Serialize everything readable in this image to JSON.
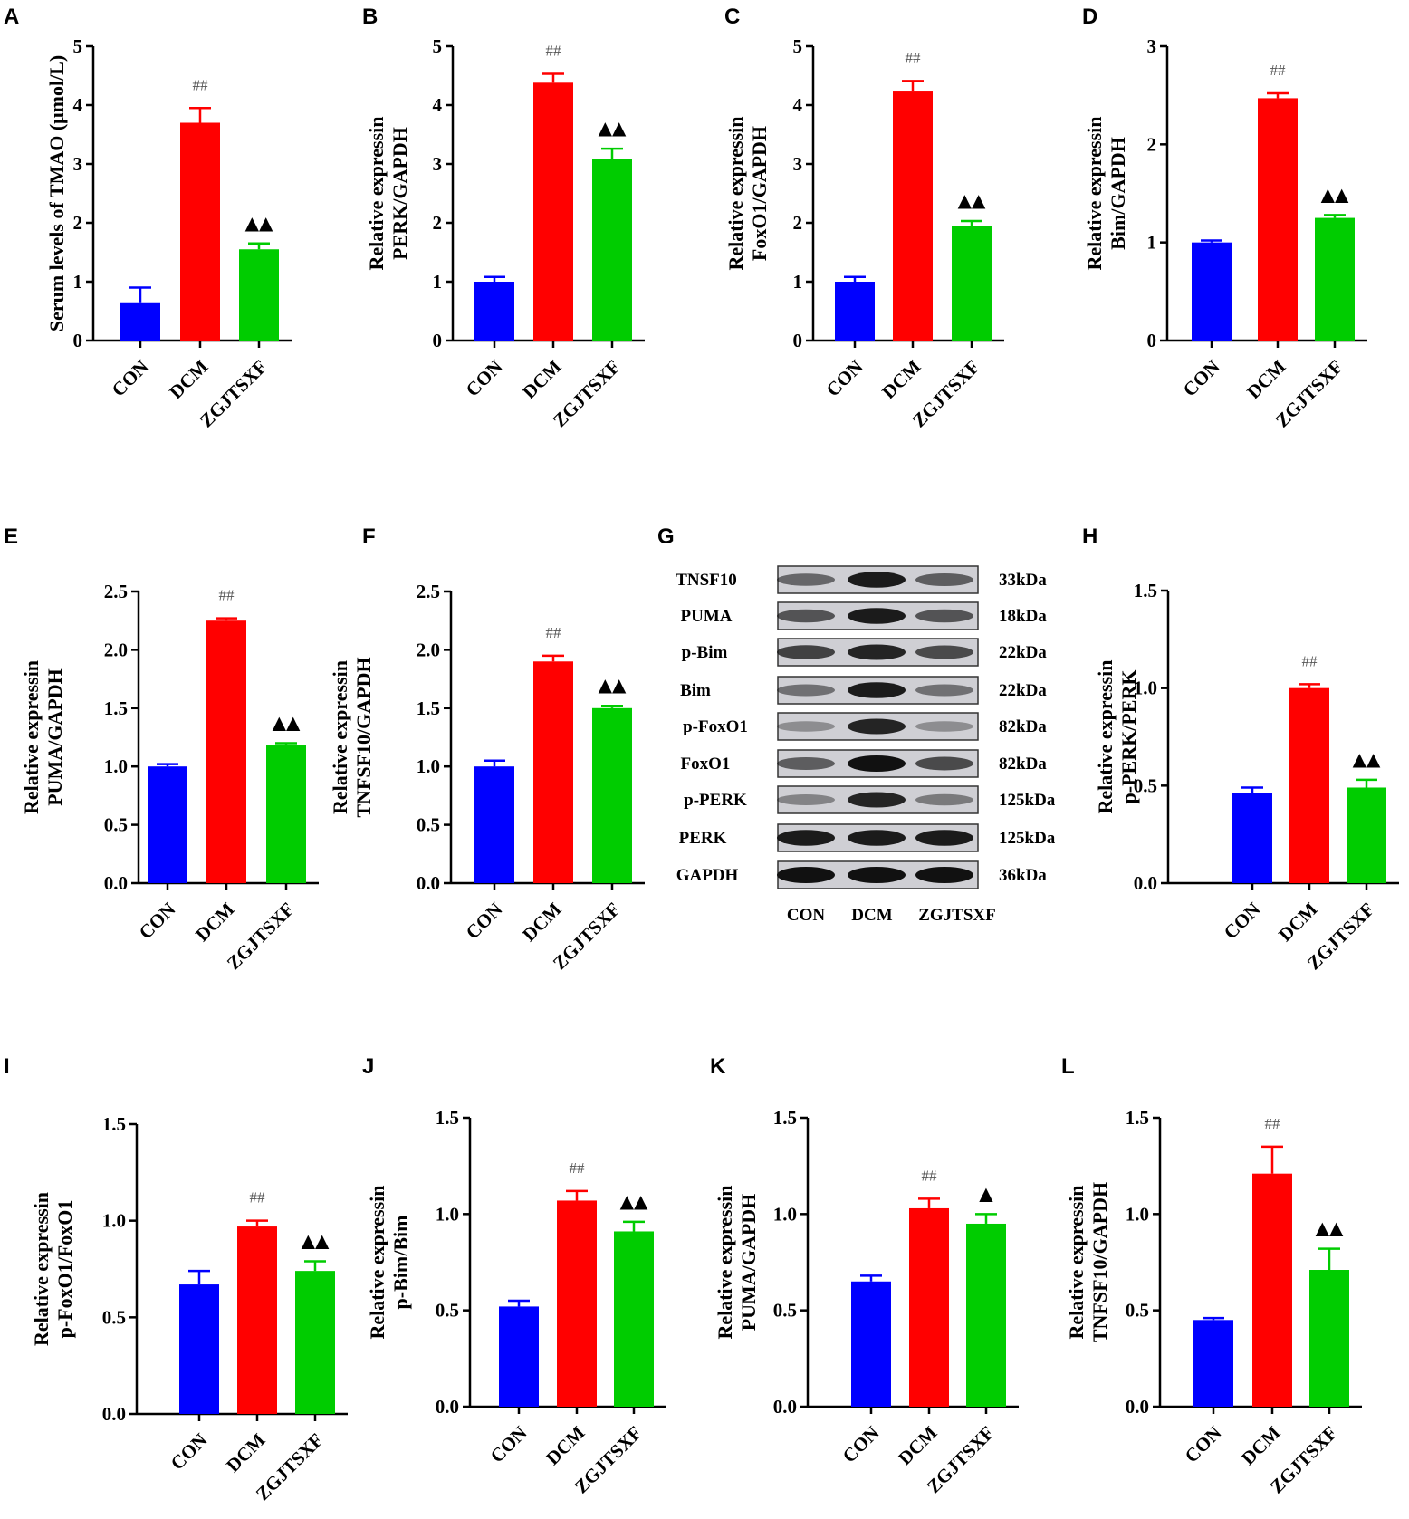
{
  "colors": {
    "CON": "#0000ff",
    "DCM": "#ff0000",
    "ZGJTSXF": "#00cc00",
    "axis": "#000000"
  },
  "chart_data": [
    {
      "panel": "A",
      "type": "bar",
      "categories": [
        "CON",
        "DCM",
        "ZGJTSXF"
      ],
      "values": [
        0.65,
        3.7,
        1.55
      ],
      "errors": [
        0.25,
        0.25,
        0.1
      ],
      "ylabel": "Serum levels of TMAO (μmol/L)",
      "ylabel_lines": [
        "Serum levels of TMAO (μmol/L)"
      ],
      "ylim": [
        0,
        5
      ],
      "yticks": [
        "0",
        "1",
        "2",
        "3",
        "4",
        "5"
      ],
      "significance": [
        "",
        "##",
        "▲▲"
      ]
    },
    {
      "panel": "B",
      "type": "bar",
      "categories": [
        "CON",
        "DCM",
        "ZGJTSXF"
      ],
      "values": [
        1.0,
        4.38,
        3.08
      ],
      "errors": [
        0.08,
        0.15,
        0.18
      ],
      "ylabel": "Relative expressin PERK/GAPDH",
      "ylabel_lines": [
        "Relative expressin",
        "PERK/GAPDH"
      ],
      "ylim": [
        0,
        5
      ],
      "yticks": [
        "0",
        "1",
        "2",
        "3",
        "4",
        "5"
      ],
      "significance": [
        "",
        "##",
        "▲▲"
      ]
    },
    {
      "panel": "C",
      "type": "bar",
      "categories": [
        "CON",
        "DCM",
        "ZGJTSXF"
      ],
      "values": [
        1.0,
        4.23,
        1.95
      ],
      "errors": [
        0.08,
        0.18,
        0.08
      ],
      "ylabel": "Relative expressin FoxO1/GAPDH",
      "ylabel_lines": [
        "Relative expressin",
        "FoxO1/GAPDH"
      ],
      "ylim": [
        0,
        5
      ],
      "yticks": [
        "0",
        "1",
        "2",
        "3",
        "4",
        "5"
      ],
      "significance": [
        "",
        "##",
        "▲▲"
      ]
    },
    {
      "panel": "D",
      "type": "bar",
      "categories": [
        "CON",
        "DCM",
        "ZGJTSXF"
      ],
      "values": [
        1.0,
        2.47,
        1.25
      ],
      "errors": [
        0.02,
        0.05,
        0.03
      ],
      "ylabel": "Relative expressin Bim/GAPDH",
      "ylabel_lines": [
        "Relative expressin",
        "Bim/GAPDH"
      ],
      "ylim": [
        0,
        3
      ],
      "yticks": [
        "0",
        "1",
        "2",
        "3"
      ],
      "significance": [
        "",
        "##",
        "▲▲"
      ]
    },
    {
      "panel": "E",
      "type": "bar",
      "categories": [
        "CON",
        "DCM",
        "ZGJTSXF"
      ],
      "values": [
        1.0,
        2.25,
        1.18
      ],
      "errors": [
        0.02,
        0.02,
        0.02
      ],
      "ylabel": "Relative expressin PUMA/GAPDH",
      "ylabel_lines": [
        "Relative expressin",
        "PUMA/GAPDH"
      ],
      "ylim": [
        0,
        2.5
      ],
      "yticks": [
        "0.0",
        "0.5",
        "1.0",
        "1.5",
        "2.0",
        "2.5"
      ],
      "significance": [
        "",
        "##",
        "▲▲"
      ]
    },
    {
      "panel": "F",
      "type": "bar",
      "categories": [
        "CON",
        "DCM",
        "ZGJTSXF"
      ],
      "values": [
        1.0,
        1.9,
        1.5
      ],
      "errors": [
        0.05,
        0.05,
        0.02
      ],
      "ylabel": "Relative expressin TNFSF10/GAPDH",
      "ylabel_lines": [
        "Relative expressin",
        "TNFSF10/GAPDH"
      ],
      "ylim": [
        0,
        2.5
      ],
      "yticks": [
        "0.0",
        "0.5",
        "1.0",
        "1.5",
        "2.0",
        "2.5"
      ],
      "significance": [
        "",
        "##",
        "▲▲"
      ]
    },
    {
      "panel": "H",
      "type": "bar",
      "categories": [
        "CON",
        "DCM",
        "ZGJTSXF"
      ],
      "values": [
        0.46,
        1.0,
        0.49
      ],
      "errors": [
        0.03,
        0.02,
        0.04
      ],
      "ylabel": "Relative expressin p-PERK/PERK",
      "ylabel_lines": [
        "Relative expressin",
        "p-PERK/PERK"
      ],
      "ylim": [
        0,
        1.5
      ],
      "yticks": [
        "0.0",
        "0.5",
        "1.0",
        "1.5"
      ],
      "significance": [
        "",
        "##",
        "▲▲"
      ]
    },
    {
      "panel": "I",
      "type": "bar",
      "categories": [
        "CON",
        "DCM",
        "ZGJTSXF"
      ],
      "values": [
        0.67,
        0.97,
        0.74
      ],
      "errors": [
        0.07,
        0.03,
        0.05
      ],
      "ylabel": "Relative expressin p-FoxO1/FoxO1",
      "ylabel_lines": [
        "Relative expressin",
        "p-FoxO1/FoxO1"
      ],
      "ylim": [
        0,
        1.5
      ],
      "yticks": [
        "0.0",
        "0.5",
        "1.0",
        "1.5"
      ],
      "significance": [
        "",
        "##",
        "▲▲"
      ]
    },
    {
      "panel": "J",
      "type": "bar",
      "categories": [
        "CON",
        "DCM",
        "ZGJTSXF"
      ],
      "values": [
        0.52,
        1.07,
        0.91
      ],
      "errors": [
        0.03,
        0.05,
        0.05
      ],
      "ylabel": "Relative expressin p-Bim/Bim",
      "ylabel_lines": [
        "Relative expressin",
        "p-Bim/Bim"
      ],
      "ylim": [
        0,
        1.5
      ],
      "yticks": [
        "0.0",
        "0.5",
        "1.0",
        "1.5"
      ],
      "significance": [
        "",
        "##",
        "▲▲"
      ]
    },
    {
      "panel": "K",
      "type": "bar",
      "categories": [
        "CON",
        "DCM",
        "ZGJTSXF"
      ],
      "values": [
        0.65,
        1.03,
        0.95
      ],
      "errors": [
        0.03,
        0.05,
        0.05
      ],
      "ylabel": "Relative expressin PUMA/GAPDH",
      "ylabel_lines": [
        "Relative expressin",
        "PUMA/GAPDH"
      ],
      "ylim": [
        0,
        1.5
      ],
      "yticks": [
        "0.0",
        "0.5",
        "1.0",
        "1.5"
      ],
      "significance": [
        "",
        "##",
        "▲"
      ]
    },
    {
      "panel": "L",
      "type": "bar",
      "categories": [
        "CON",
        "DCM",
        "ZGJTSXF"
      ],
      "values": [
        0.45,
        1.21,
        0.71
      ],
      "errors": [
        0.01,
        0.14,
        0.11
      ],
      "ylabel": "Relative expressin TNFSF10/GAPDH",
      "ylabel_lines": [
        "Relative expressin",
        "TNFSF10/GAPDH"
      ],
      "ylim": [
        0,
        1.5
      ],
      "yticks": [
        "0.0",
        "0.5",
        "1.0",
        "1.5"
      ],
      "significance": [
        "",
        "##",
        "▲▲"
      ]
    }
  ],
  "western_blot": {
    "panel": "G",
    "lanes": [
      "CON",
      "DCM",
      "ZGJTSXF"
    ],
    "rows": [
      {
        "protein": "TNSF10",
        "size": "33kDa",
        "intensity": [
          0.55,
          0.95,
          0.6
        ]
      },
      {
        "protein": "PUMA",
        "size": "18kDa",
        "intensity": [
          0.65,
          0.95,
          0.65
        ]
      },
      {
        "protein": "p-Bim",
        "size": "22kDa",
        "intensity": [
          0.75,
          0.9,
          0.7
        ]
      },
      {
        "protein": "Bim",
        "size": "22kDa",
        "intensity": [
          0.5,
          0.95,
          0.5
        ]
      },
      {
        "protein": "p-FoxO1",
        "size": "82kDa",
        "intensity": [
          0.35,
          0.9,
          0.35
        ]
      },
      {
        "protein": "FoxO1",
        "size": "82kDa",
        "intensity": [
          0.6,
          1.0,
          0.7
        ]
      },
      {
        "protein": "p-PERK",
        "size": "125kDa",
        "intensity": [
          0.4,
          0.9,
          0.45
        ]
      },
      {
        "protein": "PERK",
        "size": "125kDa",
        "intensity": [
          0.95,
          0.95,
          0.95
        ]
      },
      {
        "protein": "GAPDH",
        "size": "36kDa",
        "intensity": [
          1.0,
          1.0,
          1.0
        ]
      }
    ]
  }
}
